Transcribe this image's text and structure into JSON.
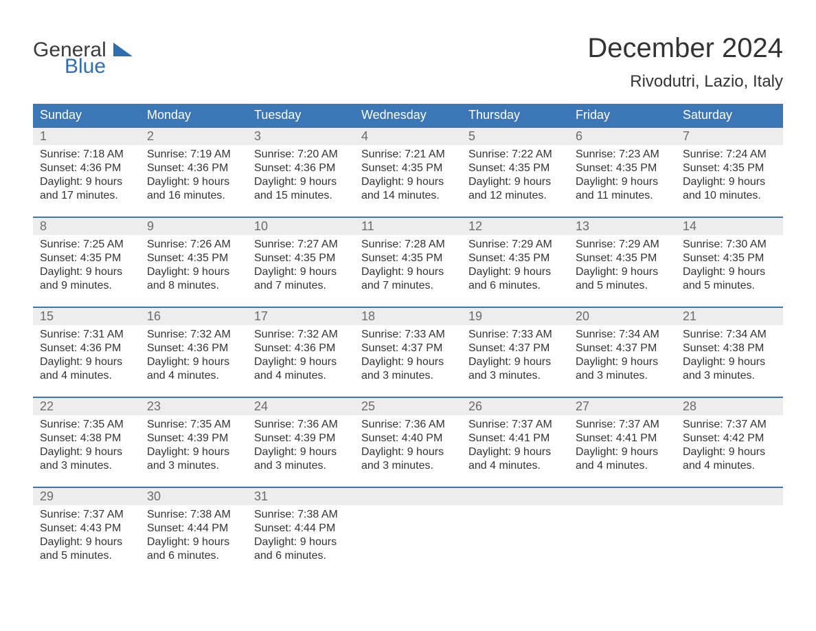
{
  "brand": {
    "word1": "General",
    "word2": "Blue",
    "triangle_color": "#2f6fb0"
  },
  "title": "December 2024",
  "location": "Rivodutri, Lazio, Italy",
  "colors": {
    "header_bg": "#3b77b6",
    "header_text": "#ffffff",
    "daynum_bg": "#ededed",
    "daynum_text": "#6b6b6b",
    "week_border": "#3b77b6",
    "body_text": "#333333",
    "page_bg": "#ffffff"
  },
  "fonts": {
    "title_pt": 40,
    "location_pt": 24,
    "header_pt": 18,
    "daynum_pt": 18,
    "body_pt": 16
  },
  "day_headers": [
    "Sunday",
    "Monday",
    "Tuesday",
    "Wednesday",
    "Thursday",
    "Friday",
    "Saturday"
  ],
  "weeks": [
    [
      {
        "num": "1",
        "sunrise": "Sunrise: 7:18 AM",
        "sunset": "Sunset: 4:36 PM",
        "dl1": "Daylight: 9 hours",
        "dl2": "and 17 minutes."
      },
      {
        "num": "2",
        "sunrise": "Sunrise: 7:19 AM",
        "sunset": "Sunset: 4:36 PM",
        "dl1": "Daylight: 9 hours",
        "dl2": "and 16 minutes."
      },
      {
        "num": "3",
        "sunrise": "Sunrise: 7:20 AM",
        "sunset": "Sunset: 4:36 PM",
        "dl1": "Daylight: 9 hours",
        "dl2": "and 15 minutes."
      },
      {
        "num": "4",
        "sunrise": "Sunrise: 7:21 AM",
        "sunset": "Sunset: 4:35 PM",
        "dl1": "Daylight: 9 hours",
        "dl2": "and 14 minutes."
      },
      {
        "num": "5",
        "sunrise": "Sunrise: 7:22 AM",
        "sunset": "Sunset: 4:35 PM",
        "dl1": "Daylight: 9 hours",
        "dl2": "and 12 minutes."
      },
      {
        "num": "6",
        "sunrise": "Sunrise: 7:23 AM",
        "sunset": "Sunset: 4:35 PM",
        "dl1": "Daylight: 9 hours",
        "dl2": "and 11 minutes."
      },
      {
        "num": "7",
        "sunrise": "Sunrise: 7:24 AM",
        "sunset": "Sunset: 4:35 PM",
        "dl1": "Daylight: 9 hours",
        "dl2": "and 10 minutes."
      }
    ],
    [
      {
        "num": "8",
        "sunrise": "Sunrise: 7:25 AM",
        "sunset": "Sunset: 4:35 PM",
        "dl1": "Daylight: 9 hours",
        "dl2": "and 9 minutes."
      },
      {
        "num": "9",
        "sunrise": "Sunrise: 7:26 AM",
        "sunset": "Sunset: 4:35 PM",
        "dl1": "Daylight: 9 hours",
        "dl2": "and 8 minutes."
      },
      {
        "num": "10",
        "sunrise": "Sunrise: 7:27 AM",
        "sunset": "Sunset: 4:35 PM",
        "dl1": "Daylight: 9 hours",
        "dl2": "and 7 minutes."
      },
      {
        "num": "11",
        "sunrise": "Sunrise: 7:28 AM",
        "sunset": "Sunset: 4:35 PM",
        "dl1": "Daylight: 9 hours",
        "dl2": "and 7 minutes."
      },
      {
        "num": "12",
        "sunrise": "Sunrise: 7:29 AM",
        "sunset": "Sunset: 4:35 PM",
        "dl1": "Daylight: 9 hours",
        "dl2": "and 6 minutes."
      },
      {
        "num": "13",
        "sunrise": "Sunrise: 7:29 AM",
        "sunset": "Sunset: 4:35 PM",
        "dl1": "Daylight: 9 hours",
        "dl2": "and 5 minutes."
      },
      {
        "num": "14",
        "sunrise": "Sunrise: 7:30 AM",
        "sunset": "Sunset: 4:35 PM",
        "dl1": "Daylight: 9 hours",
        "dl2": "and 5 minutes."
      }
    ],
    [
      {
        "num": "15",
        "sunrise": "Sunrise: 7:31 AM",
        "sunset": "Sunset: 4:36 PM",
        "dl1": "Daylight: 9 hours",
        "dl2": "and 4 minutes."
      },
      {
        "num": "16",
        "sunrise": "Sunrise: 7:32 AM",
        "sunset": "Sunset: 4:36 PM",
        "dl1": "Daylight: 9 hours",
        "dl2": "and 4 minutes."
      },
      {
        "num": "17",
        "sunrise": "Sunrise: 7:32 AM",
        "sunset": "Sunset: 4:36 PM",
        "dl1": "Daylight: 9 hours",
        "dl2": "and 4 minutes."
      },
      {
        "num": "18",
        "sunrise": "Sunrise: 7:33 AM",
        "sunset": "Sunset: 4:37 PM",
        "dl1": "Daylight: 9 hours",
        "dl2": "and 3 minutes."
      },
      {
        "num": "19",
        "sunrise": "Sunrise: 7:33 AM",
        "sunset": "Sunset: 4:37 PM",
        "dl1": "Daylight: 9 hours",
        "dl2": "and 3 minutes."
      },
      {
        "num": "20",
        "sunrise": "Sunrise: 7:34 AM",
        "sunset": "Sunset: 4:37 PM",
        "dl1": "Daylight: 9 hours",
        "dl2": "and 3 minutes."
      },
      {
        "num": "21",
        "sunrise": "Sunrise: 7:34 AM",
        "sunset": "Sunset: 4:38 PM",
        "dl1": "Daylight: 9 hours",
        "dl2": "and 3 minutes."
      }
    ],
    [
      {
        "num": "22",
        "sunrise": "Sunrise: 7:35 AM",
        "sunset": "Sunset: 4:38 PM",
        "dl1": "Daylight: 9 hours",
        "dl2": "and 3 minutes."
      },
      {
        "num": "23",
        "sunrise": "Sunrise: 7:35 AM",
        "sunset": "Sunset: 4:39 PM",
        "dl1": "Daylight: 9 hours",
        "dl2": "and 3 minutes."
      },
      {
        "num": "24",
        "sunrise": "Sunrise: 7:36 AM",
        "sunset": "Sunset: 4:39 PM",
        "dl1": "Daylight: 9 hours",
        "dl2": "and 3 minutes."
      },
      {
        "num": "25",
        "sunrise": "Sunrise: 7:36 AM",
        "sunset": "Sunset: 4:40 PM",
        "dl1": "Daylight: 9 hours",
        "dl2": "and 3 minutes."
      },
      {
        "num": "26",
        "sunrise": "Sunrise: 7:37 AM",
        "sunset": "Sunset: 4:41 PM",
        "dl1": "Daylight: 9 hours",
        "dl2": "and 4 minutes."
      },
      {
        "num": "27",
        "sunrise": "Sunrise: 7:37 AM",
        "sunset": "Sunset: 4:41 PM",
        "dl1": "Daylight: 9 hours",
        "dl2": "and 4 minutes."
      },
      {
        "num": "28",
        "sunrise": "Sunrise: 7:37 AM",
        "sunset": "Sunset: 4:42 PM",
        "dl1": "Daylight: 9 hours",
        "dl2": "and 4 minutes."
      }
    ],
    [
      {
        "num": "29",
        "sunrise": "Sunrise: 7:37 AM",
        "sunset": "Sunset: 4:43 PM",
        "dl1": "Daylight: 9 hours",
        "dl2": "and 5 minutes."
      },
      {
        "num": "30",
        "sunrise": "Sunrise: 7:38 AM",
        "sunset": "Sunset: 4:44 PM",
        "dl1": "Daylight: 9 hours",
        "dl2": "and 6 minutes."
      },
      {
        "num": "31",
        "sunrise": "Sunrise: 7:38 AM",
        "sunset": "Sunset: 4:44 PM",
        "dl1": "Daylight: 9 hours",
        "dl2": "and 6 minutes."
      },
      {
        "empty": true
      },
      {
        "empty": true
      },
      {
        "empty": true
      },
      {
        "empty": true
      }
    ]
  ]
}
